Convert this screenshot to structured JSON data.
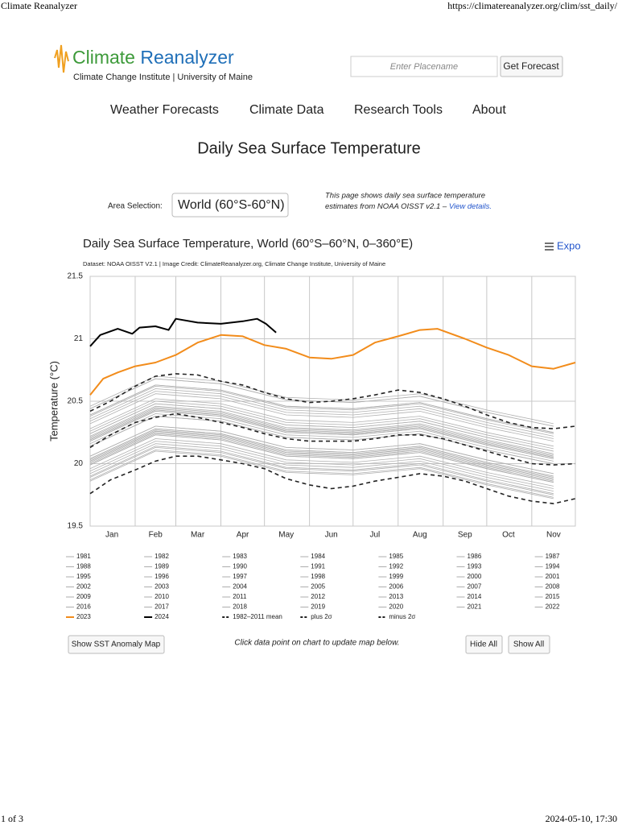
{
  "browser": {
    "title": "Climate Reanalyzer",
    "url": "https://climatereanalyzer.org/clim/sst_daily/",
    "page": "1 of 3",
    "timestamp": "2024-05-10, 17:30"
  },
  "header": {
    "logo_word_1": "Climate",
    "logo_word_2": "Reanalyzer",
    "logo_subtitle": "Climate Change Institute | University of Maine",
    "search_placeholder": "Enter Placename",
    "search_button": "Get Forecast"
  },
  "nav": [
    "Weather Forecasts",
    "Climate Data",
    "Research Tools",
    "About"
  ],
  "page_title": "Daily Sea Surface Temperature",
  "area_selection": {
    "label": "Area Selection:",
    "value": "World (60°S-60°N)"
  },
  "note": {
    "line_1": "This page shows daily sea surface temperature",
    "line_2": "estimates from NOAA OISST v2.1 – ",
    "link": "View details."
  },
  "chart_data": {
    "type": "line",
    "title": "Daily Sea Surface Temperature, World (60°S–60°N, 0–360°E)",
    "subtitle": "Dataset: NOAA OISST V2.1 | Image Credit: ClimateReanalyzer.org, Climate Change Institute, University of Maine",
    "export": "Expo",
    "ylabel": "Temperature (°C)",
    "xlim": [
      1,
      335
    ],
    "ylim": [
      19.5,
      21.5
    ],
    "yticks": [
      19.5,
      20,
      20.5,
      21,
      21.5
    ],
    "xticks": [
      {
        "value": 16,
        "label": "Jan"
      },
      {
        "value": 46,
        "label": "Feb"
      },
      {
        "value": 75,
        "label": "Mar"
      },
      {
        "value": 106,
        "label": "Apr"
      },
      {
        "value": 136,
        "label": "May"
      },
      {
        "value": 167,
        "label": "Jun"
      },
      {
        "value": 197,
        "label": "Jul"
      },
      {
        "value": 228,
        "label": "Aug"
      },
      {
        "value": 259,
        "label": "Sep"
      },
      {
        "value": 289,
        "label": "Oct"
      },
      {
        "value": 320,
        "label": "Nov"
      }
    ],
    "x_gridlines": [
      32,
      60,
      91,
      121,
      152,
      182,
      213,
      244,
      274,
      305,
      335
    ],
    "grid": true,
    "x": [
      1,
      46,
      91,
      136,
      182,
      228,
      274,
      320
    ],
    "series": [
      {
        "name": "1981",
        "color": "#b0b0b0",
        "values": [
          19.9,
          20.14,
          20.1,
          19.97,
          19.95,
          20.0,
          19.87,
          19.76
        ]
      },
      {
        "name": "1982",
        "color": "#b0b0b0",
        "values": [
          19.87,
          20.11,
          20.07,
          19.94,
          19.92,
          19.97,
          19.84,
          19.73
        ]
      },
      {
        "name": "1983",
        "color": "#b0b0b0",
        "values": [
          19.99,
          20.23,
          20.19,
          20.06,
          20.04,
          20.09,
          19.96,
          19.85
        ]
      },
      {
        "name": "1984",
        "color": "#b0b0b0",
        "values": [
          19.89,
          20.13,
          20.09,
          19.96,
          19.94,
          19.99,
          19.86,
          19.75
        ]
      },
      {
        "name": "1985",
        "color": "#b0b0b0",
        "values": [
          19.86,
          20.1,
          20.06,
          19.93,
          19.91,
          19.96,
          19.83,
          19.72
        ]
      },
      {
        "name": "1986",
        "color": "#b0b0b0",
        "values": [
          19.94,
          20.18,
          20.14,
          20.01,
          19.99,
          20.04,
          19.91,
          19.8
        ]
      },
      {
        "name": "1987",
        "color": "#b0b0b0",
        "values": [
          20.04,
          20.28,
          20.24,
          20.11,
          20.09,
          20.14,
          20.01,
          19.9
        ]
      },
      {
        "name": "1988",
        "color": "#b0b0b0",
        "values": [
          20.0,
          20.24,
          20.2,
          20.07,
          20.05,
          20.1,
          19.97,
          19.86
        ]
      },
      {
        "name": "1989",
        "color": "#b0b0b0",
        "values": [
          19.92,
          20.16,
          20.12,
          19.99,
          19.97,
          20.02,
          19.89,
          19.78
        ]
      },
      {
        "name": "1990",
        "color": "#b0b0b0",
        "values": [
          20.02,
          20.26,
          20.22,
          20.09,
          20.07,
          20.12,
          19.99,
          19.88
        ]
      },
      {
        "name": "1991",
        "color": "#b0b0b0",
        "values": [
          20.03,
          20.27,
          20.23,
          20.1,
          20.08,
          20.13,
          20.0,
          19.89
        ]
      },
      {
        "name": "1992",
        "color": "#b0b0b0",
        "values": [
          19.96,
          20.2,
          20.16,
          20.03,
          20.01,
          20.06,
          19.93,
          19.82
        ]
      },
      {
        "name": "1993",
        "color": "#b0b0b0",
        "values": [
          19.99,
          20.23,
          20.19,
          20.06,
          20.04,
          20.09,
          19.96,
          19.85
        ]
      },
      {
        "name": "1994",
        "color": "#b0b0b0",
        "values": [
          20.02,
          20.26,
          20.22,
          20.09,
          20.07,
          20.12,
          19.99,
          19.88
        ]
      },
      {
        "name": "1995",
        "color": "#b0b0b0",
        "values": [
          20.06,
          20.3,
          20.26,
          20.13,
          20.11,
          20.16,
          20.03,
          19.92
        ]
      },
      {
        "name": "1996",
        "color": "#b0b0b0",
        "values": [
          20.01,
          20.25,
          20.21,
          20.08,
          20.06,
          20.11,
          19.98,
          19.87
        ]
      },
      {
        "name": "1997",
        "color": "#b0b0b0",
        "values": [
          20.14,
          20.38,
          20.34,
          20.21,
          20.19,
          20.24,
          20.11,
          20.0
        ]
      },
      {
        "name": "1998",
        "color": "#b0b0b0",
        "values": [
          20.18,
          20.42,
          20.38,
          20.25,
          20.23,
          20.28,
          20.15,
          20.04
        ]
      },
      {
        "name": "1999",
        "color": "#b0b0b0",
        "values": [
          20.04,
          20.28,
          20.24,
          20.11,
          20.09,
          20.14,
          20.01,
          19.9
        ]
      },
      {
        "name": "2000",
        "color": "#b0b0b0",
        "values": [
          20.06,
          20.3,
          20.26,
          20.13,
          20.11,
          20.16,
          20.03,
          19.92
        ]
      },
      {
        "name": "2001",
        "color": "#b0b0b0",
        "values": [
          20.14,
          20.38,
          20.34,
          20.21,
          20.19,
          20.24,
          20.11,
          20.0
        ]
      },
      {
        "name": "2002",
        "color": "#b0b0b0",
        "values": [
          20.18,
          20.42,
          20.38,
          20.25,
          20.23,
          20.28,
          20.15,
          20.04
        ]
      },
      {
        "name": "2003",
        "color": "#b0b0b0",
        "values": [
          20.21,
          20.45,
          20.41,
          20.28,
          20.26,
          20.31,
          20.18,
          20.07
        ]
      },
      {
        "name": "2004",
        "color": "#b0b0b0",
        "values": [
          20.19,
          20.43,
          20.39,
          20.26,
          20.24,
          20.29,
          20.16,
          20.05
        ]
      },
      {
        "name": "2005",
        "color": "#b0b0b0",
        "values": [
          20.22,
          20.46,
          20.42,
          20.29,
          20.27,
          20.32,
          20.19,
          20.08
        ]
      },
      {
        "name": "2006",
        "color": "#b0b0b0",
        "values": [
          20.2,
          20.44,
          20.4,
          20.27,
          20.25,
          20.3,
          20.17,
          20.06
        ]
      },
      {
        "name": "2007",
        "color": "#b0b0b0",
        "values": [
          20.16,
          20.4,
          20.36,
          20.23,
          20.21,
          20.26,
          20.13,
          20.02
        ]
      },
      {
        "name": "2008",
        "color": "#b0b0b0",
        "values": [
          20.14,
          20.38,
          20.34,
          20.21,
          20.19,
          20.24,
          20.11,
          20.0
        ]
      },
      {
        "name": "2009",
        "color": "#b0b0b0",
        "values": [
          20.24,
          20.48,
          20.44,
          20.31,
          20.29,
          20.34,
          20.21,
          20.1
        ]
      },
      {
        "name": "2010",
        "color": "#b0b0b0",
        "values": [
          20.28,
          20.52,
          20.48,
          20.35,
          20.33,
          20.38,
          20.25,
          20.14
        ]
      },
      {
        "name": "2011",
        "color": "#b0b0b0",
        "values": [
          20.19,
          20.43,
          20.39,
          20.26,
          20.24,
          20.29,
          20.16,
          20.05
        ]
      },
      {
        "name": "2012",
        "color": "#b0b0b0",
        "values": [
          20.24,
          20.48,
          20.44,
          20.31,
          20.29,
          20.34,
          20.21,
          20.1
        ]
      },
      {
        "name": "2013",
        "color": "#b0b0b0",
        "values": [
          20.26,
          20.5,
          20.46,
          20.33,
          20.31,
          20.36,
          20.23,
          20.12
        ]
      },
      {
        "name": "2014",
        "color": "#b0b0b0",
        "values": [
          20.32,
          20.56,
          20.52,
          20.39,
          20.37,
          20.42,
          20.29,
          20.18
        ]
      },
      {
        "name": "2015",
        "color": "#b0b0b0",
        "values": [
          20.39,
          20.63,
          20.59,
          20.46,
          20.44,
          20.49,
          20.36,
          20.25
        ]
      },
      {
        "name": "2016",
        "color": "#b0b0b0",
        "values": [
          20.44,
          20.68,
          20.64,
          20.51,
          20.49,
          20.54,
          20.41,
          20.3
        ]
      },
      {
        "name": "2017",
        "color": "#b0b0b0",
        "values": [
          20.39,
          20.63,
          20.59,
          20.46,
          20.44,
          20.49,
          20.36,
          20.25
        ]
      },
      {
        "name": "2018",
        "color": "#b0b0b0",
        "values": [
          20.34,
          20.58,
          20.54,
          20.41,
          20.39,
          20.44,
          20.31,
          20.2
        ]
      },
      {
        "name": "2019",
        "color": "#b0b0b0",
        "values": [
          20.44,
          20.68,
          20.64,
          20.51,
          20.49,
          20.54,
          20.41,
          20.3
        ]
      },
      {
        "name": "2020",
        "color": "#b0b0b0",
        "values": [
          20.46,
          20.7,
          20.66,
          20.53,
          20.51,
          20.56,
          20.43,
          20.32
        ]
      },
      {
        "name": "2021",
        "color": "#b0b0b0",
        "values": [
          20.38,
          20.62,
          20.58,
          20.45,
          20.43,
          20.48,
          20.35,
          20.24
        ]
      },
      {
        "name": "2022",
        "color": "#b0b0b0",
        "values": [
          20.36,
          20.6,
          20.56,
          20.43,
          20.41,
          20.46,
          20.33,
          20.22
        ]
      },
      {
        "name": "2023",
        "color": "#f28c1b",
        "x": [
          1,
          10,
          20,
          32,
          46,
          60,
          75,
          91,
          106,
          121,
          136,
          152,
          167,
          182,
          197,
          213,
          228,
          240,
          259,
          274,
          289,
          305,
          320,
          335
        ],
        "values": [
          20.55,
          20.68,
          20.73,
          20.78,
          20.81,
          20.87,
          20.97,
          21.03,
          21.02,
          20.95,
          20.92,
          20.85,
          20.84,
          20.87,
          20.97,
          21.02,
          21.07,
          21.08,
          21.0,
          20.93,
          20.87,
          20.78,
          20.76,
          20.81
        ]
      },
      {
        "name": "2024",
        "color": "#000000",
        "x": [
          1,
          8,
          20,
          30,
          35,
          46,
          55,
          60,
          75,
          91,
          106,
          116,
          122,
          129
        ],
        "values": [
          20.94,
          21.03,
          21.08,
          21.04,
          21.09,
          21.1,
          21.07,
          21.16,
          21.13,
          21.12,
          21.14,
          21.16,
          21.12,
          21.05
        ]
      },
      {
        "name": "1982–2011 mean",
        "color": "#222222",
        "dashed": true,
        "x": [
          1,
          15,
          32,
          46,
          60,
          75,
          91,
          106,
          121,
          136,
          152,
          167,
          182,
          197,
          213,
          228,
          244,
          259,
          274,
          289,
          305,
          320,
          335
        ],
        "values": [
          20.13,
          20.23,
          20.33,
          20.37,
          20.4,
          20.37,
          20.33,
          20.29,
          20.24,
          20.2,
          20.18,
          20.18,
          20.18,
          20.2,
          20.23,
          20.23,
          20.2,
          20.15,
          20.1,
          20.05,
          20.0,
          19.99,
          20.0
        ]
      },
      {
        "name": "plus 2σ",
        "color": "#222222",
        "dashed": true,
        "x": [
          1,
          15,
          32,
          46,
          60,
          75,
          91,
          106,
          121,
          136,
          152,
          167,
          182,
          197,
          213,
          228,
          244,
          259,
          274,
          289,
          305,
          320,
          335
        ],
        "values": [
          20.42,
          20.5,
          20.62,
          20.7,
          20.72,
          20.71,
          20.66,
          20.63,
          20.57,
          20.52,
          20.49,
          20.5,
          20.52,
          20.55,
          20.59,
          20.57,
          20.52,
          20.46,
          20.39,
          20.33,
          20.29,
          20.28,
          20.3
        ]
      },
      {
        "name": "minus 2σ",
        "color": "#222222",
        "dashed": true,
        "x": [
          1,
          15,
          32,
          46,
          60,
          75,
          91,
          106,
          121,
          136,
          152,
          167,
          182,
          197,
          213,
          228,
          244,
          259,
          274,
          289,
          305,
          320,
          335
        ],
        "values": [
          19.76,
          19.87,
          19.95,
          20.02,
          20.06,
          20.06,
          20.03,
          20.0,
          19.96,
          19.88,
          19.83,
          19.8,
          19.82,
          19.86,
          19.89,
          19.92,
          19.9,
          19.86,
          19.8,
          19.74,
          19.7,
          19.68,
          19.72
        ]
      }
    ]
  },
  "controls": {
    "anomaly_button": "Show SST Anomaly Map",
    "hint": "Click data point on chart to update map below.",
    "hide_all": "Hide All",
    "show_all": "Show All"
  }
}
